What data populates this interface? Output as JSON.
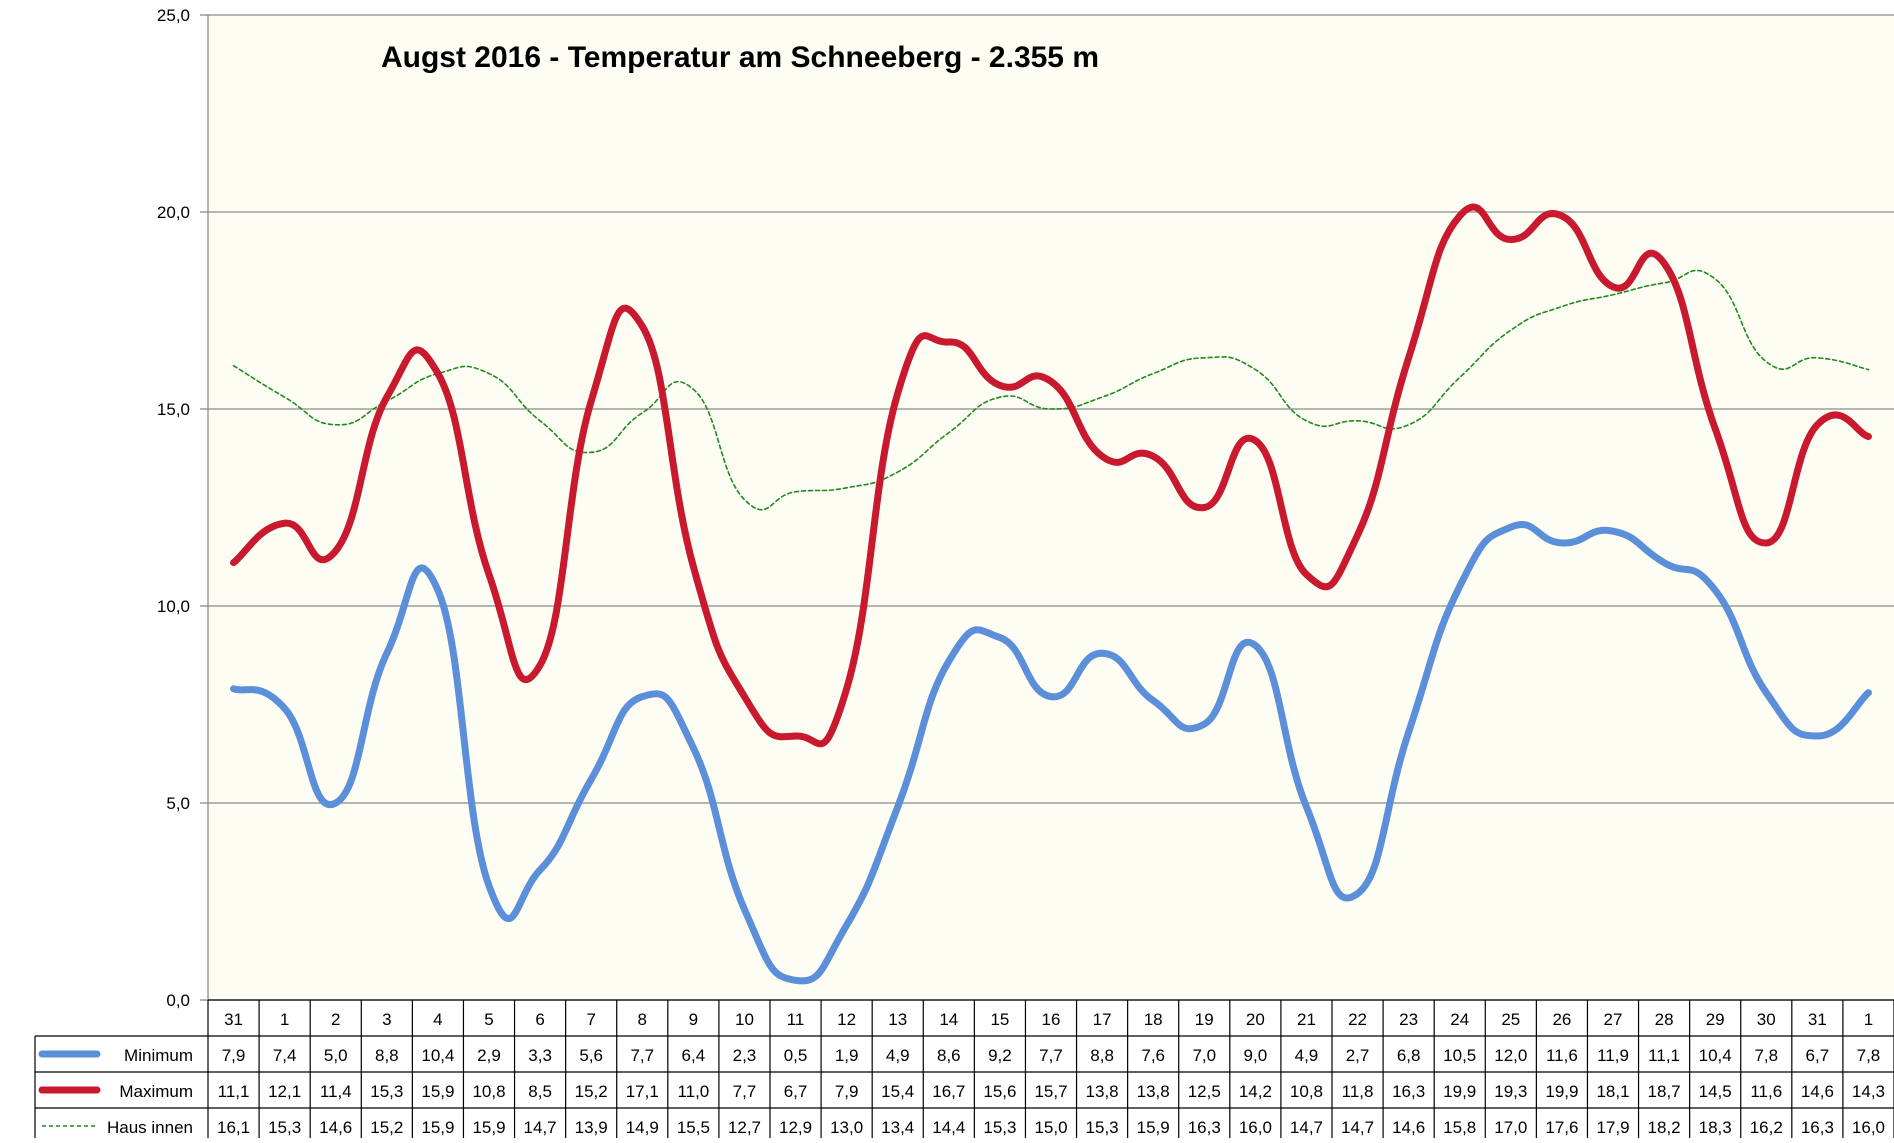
{
  "chart_data": {
    "type": "line",
    "title": "Augst 2016 - Temperatur am Schneeberg - 2.355 m",
    "categories": [
      "31",
      "1",
      "2",
      "3",
      "4",
      "5",
      "6",
      "7",
      "8",
      "9",
      "10",
      "11",
      "12",
      "13",
      "14",
      "15",
      "16",
      "17",
      "18",
      "19",
      "20",
      "21",
      "22",
      "23",
      "24",
      "25",
      "26",
      "27",
      "28",
      "29",
      "30",
      "31",
      "1"
    ],
    "ylim": [
      0,
      25
    ],
    "yticks": [
      0,
      5,
      10,
      15,
      20,
      25
    ],
    "ytick_labels": [
      "0,0",
      "5,0",
      "10,0",
      "15,0",
      "20,0",
      "25,0"
    ],
    "grid": true,
    "legend": "data-table",
    "series": [
      {
        "name": "Minimum",
        "color": "#5b8fd9",
        "style": "solid-thick",
        "values": [
          7.9,
          7.4,
          5.0,
          8.8,
          10.4,
          2.9,
          3.3,
          5.6,
          7.7,
          6.4,
          2.3,
          0.5,
          1.9,
          4.9,
          8.6,
          9.2,
          7.7,
          8.8,
          7.6,
          7.0,
          9.0,
          4.9,
          2.7,
          6.8,
          10.5,
          12.0,
          11.6,
          11.9,
          11.1,
          10.4,
          7.8,
          6.7,
          7.8
        ],
        "labels": [
          "7,9",
          "7,4",
          "5,0",
          "8,8",
          "10,4",
          "2,9",
          "3,3",
          "5,6",
          "7,7",
          "6,4",
          "2,3",
          "0,5",
          "1,9",
          "4,9",
          "8,6",
          "9,2",
          "7,7",
          "8,8",
          "7,6",
          "7,0",
          "9,0",
          "4,9",
          "2,7",
          "6,8",
          "10,5",
          "12,0",
          "11,6",
          "11,9",
          "11,1",
          "10,4",
          "7,8",
          "6,7",
          "7,8"
        ]
      },
      {
        "name": "Maximum",
        "color": "#c8192e",
        "style": "solid-thick",
        "values": [
          11.1,
          12.1,
          11.4,
          15.3,
          15.9,
          10.8,
          8.5,
          15.2,
          17.1,
          11.0,
          7.7,
          6.7,
          7.9,
          15.4,
          16.7,
          15.6,
          15.7,
          13.8,
          13.8,
          12.5,
          14.2,
          10.8,
          11.8,
          16.3,
          19.9,
          19.3,
          19.9,
          18.1,
          18.7,
          14.5,
          11.6,
          14.6,
          14.3
        ],
        "labels": [
          "11,1",
          "12,1",
          "11,4",
          "15,3",
          "15,9",
          "10,8",
          "8,5",
          "15,2",
          "17,1",
          "11,0",
          "7,7",
          "6,7",
          "7,9",
          "15,4",
          "16,7",
          "15,6",
          "15,7",
          "13,8",
          "13,8",
          "12,5",
          "14,2",
          "10,8",
          "11,8",
          "16,3",
          "19,9",
          "19,3",
          "19,9",
          "18,1",
          "18,7",
          "14,5",
          "11,6",
          "14,6",
          "14,3"
        ]
      },
      {
        "name": "Haus innen",
        "color": "#1f8a1f",
        "style": "dashed-thin",
        "values": [
          16.1,
          15.3,
          14.6,
          15.2,
          15.9,
          15.9,
          14.7,
          13.9,
          14.9,
          15.5,
          12.7,
          12.9,
          13.0,
          13.4,
          14.4,
          15.3,
          15.0,
          15.3,
          15.9,
          16.3,
          16.0,
          14.7,
          14.7,
          14.6,
          15.8,
          17.0,
          17.6,
          17.9,
          18.2,
          18.3,
          16.2,
          16.3,
          16.0
        ],
        "labels": [
          "16,1",
          "15,3",
          "14,6",
          "15,2",
          "15,9",
          "15,9",
          "14,7",
          "13,9",
          "14,9",
          "15,5",
          "12,7",
          "12,9",
          "13,0",
          "13,4",
          "14,4",
          "15,3",
          "15,0",
          "15,3",
          "15,9",
          "16,3",
          "16,0",
          "14,7",
          "14,7",
          "14,6",
          "15,8",
          "17,0",
          "17,6",
          "17,9",
          "18,2",
          "18,3",
          "16,2",
          "16,3",
          "16,0"
        ]
      }
    ]
  }
}
